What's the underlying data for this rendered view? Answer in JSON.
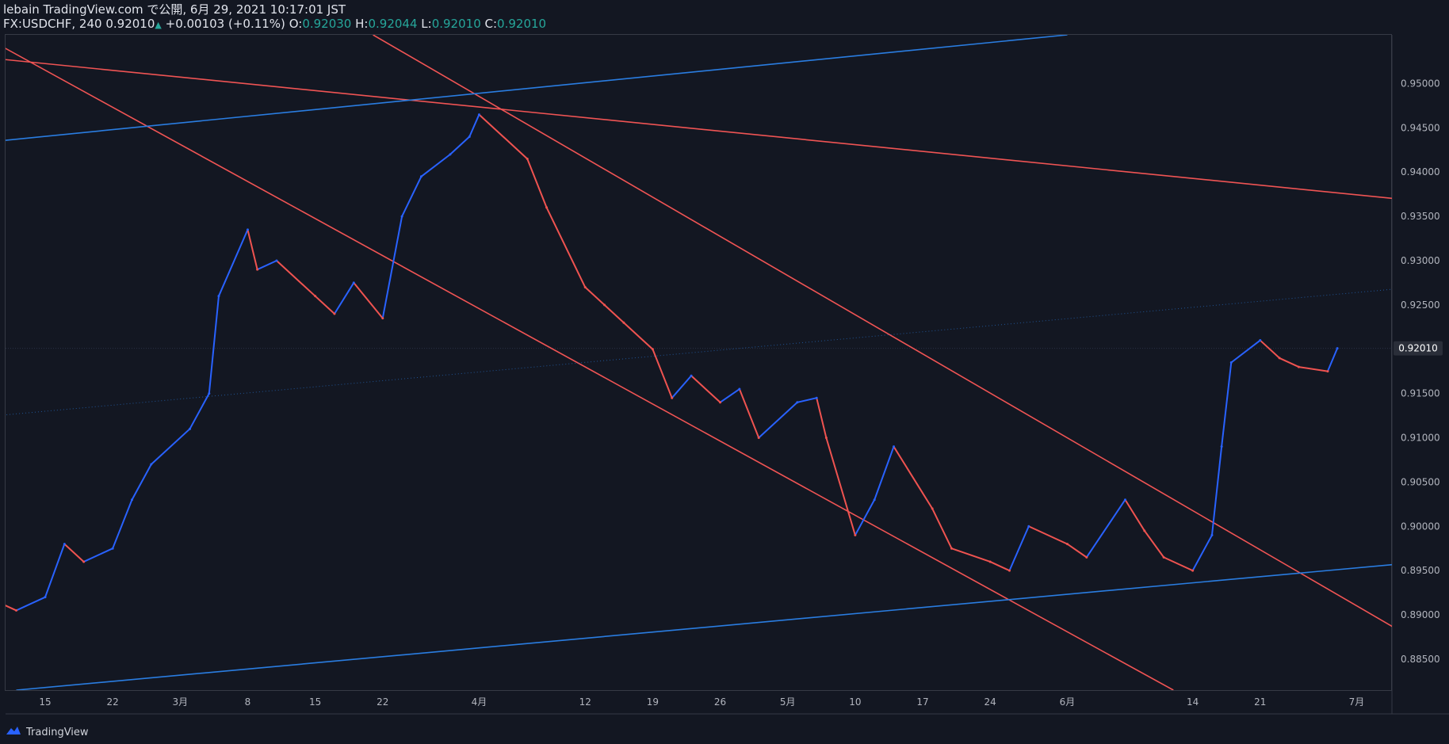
{
  "header": {
    "line1": "lebain TradingView.com で公開, 6月 29, 2021 10:17:01 JST",
    "symbol": "FX:USDCHF, 240",
    "last": "0.92010",
    "change": "+0.00103 (+0.11%)",
    "o_label": "O:",
    "o_val": "0.92030",
    "h_label": "H:",
    "h_val": "0.92044",
    "l_label": "L:",
    "l_val": "0.92010",
    "c_label": "C:",
    "c_val": "0.92010"
  },
  "footer": {
    "brand": "TradingView"
  },
  "colors": {
    "up": "#2962ff",
    "down": "#ef5350",
    "bg": "#131722",
    "trend_red": "#f05454",
    "trend_blue": "#2a7de1"
  },
  "chart_data": {
    "type": "line",
    "symbol": "FX:USDCHF",
    "timeframe": "240",
    "x_tick_labels": [
      "15",
      "22",
      "3月",
      "8",
      "15",
      "22",
      "4月",
      "12",
      "19",
      "26",
      "5月",
      "10",
      "17",
      "24",
      "6月",
      "14",
      "21",
      "7月"
    ],
    "y_tick_labels": [
      "0.95000",
      "0.94500",
      "0.94000",
      "0.93500",
      "0.93000",
      "0.92500",
      "0.92000",
      "0.91500",
      "0.91000",
      "0.90500",
      "0.90000",
      "0.89500",
      "0.89000",
      "0.88500"
    ],
    "ylim": [
      0.8815,
      0.9555
    ],
    "last_price": 0.9201,
    "last_price_label": "0.92010",
    "series": [
      {
        "x": [
          "2021-02-10",
          "2021-02-12",
          "2021-02-15",
          "2021-02-17",
          "2021-02-19",
          "2021-02-22",
          "2021-02-24",
          "2021-02-26",
          "2021-03-02",
          "2021-03-04",
          "2021-03-05",
          "2021-03-08",
          "2021-03-09",
          "2021-03-11",
          "2021-03-15",
          "2021-03-17",
          "2021-03-19",
          "2021-03-22",
          "2021-03-24",
          "2021-03-26",
          "2021-03-29",
          "2021-03-31",
          "2021-04-01",
          "2021-04-06",
          "2021-04-08",
          "2021-04-12",
          "2021-04-14",
          "2021-04-16",
          "2021-04-19",
          "2021-04-21",
          "2021-04-23",
          "2021-04-26",
          "2021-04-28",
          "2021-04-30",
          "2021-05-04",
          "2021-05-06",
          "2021-05-07",
          "2021-05-10",
          "2021-05-12",
          "2021-05-14",
          "2021-05-18",
          "2021-05-20",
          "2021-05-24",
          "2021-05-26",
          "2021-05-28",
          "2021-06-01",
          "2021-06-03",
          "2021-06-07",
          "2021-06-09",
          "2021-06-11",
          "2021-06-14",
          "2021-06-16",
          "2021-06-17",
          "2021-06-18",
          "2021-06-21",
          "2021-06-23",
          "2021-06-25",
          "2021-06-28",
          "2021-06-29"
        ],
        "close": [
          0.8915,
          0.8905,
          0.892,
          0.898,
          0.896,
          0.8975,
          0.903,
          0.907,
          0.911,
          0.915,
          0.926,
          0.9335,
          0.929,
          0.93,
          0.926,
          0.924,
          0.9275,
          0.9235,
          0.935,
          0.9395,
          0.942,
          0.944,
          0.9465,
          0.9415,
          0.936,
          0.927,
          0.925,
          0.923,
          0.92,
          0.9145,
          0.917,
          0.914,
          0.9155,
          0.91,
          0.914,
          0.9145,
          0.91,
          0.899,
          0.903,
          0.909,
          0.902,
          0.8975,
          0.896,
          0.895,
          0.9,
          0.898,
          0.8965,
          0.903,
          0.8995,
          0.8965,
          0.895,
          0.899,
          0.909,
          0.9185,
          0.921,
          0.919,
          0.918,
          0.9175,
          0.9201
        ]
      }
    ],
    "trendlines": [
      {
        "color": "red",
        "from": [
          "2021-02-10",
          0.9528
        ],
        "to": [
          "2021-07-05",
          0.937
        ]
      },
      {
        "color": "red",
        "from": [
          "2021-02-10",
          0.9545
        ],
        "to": [
          "2021-06-12",
          0.8815
        ]
      },
      {
        "color": "red",
        "from": [
          "2021-03-21",
          0.9555
        ],
        "to": [
          "2021-07-05",
          0.8885
        ]
      },
      {
        "color": "blue",
        "from": [
          "2021-02-10",
          0.9435
        ],
        "to": [
          "2021-06-01",
          0.9555
        ]
      },
      {
        "color": "blue",
        "from": [
          "2021-02-12",
          0.8815
        ],
        "to": [
          "2021-07-05",
          0.8957
        ]
      },
      {
        "color": "blue-dotted",
        "from": [
          "2021-02-10",
          0.9125
        ],
        "to": [
          "2021-07-05",
          0.9268
        ]
      }
    ]
  }
}
